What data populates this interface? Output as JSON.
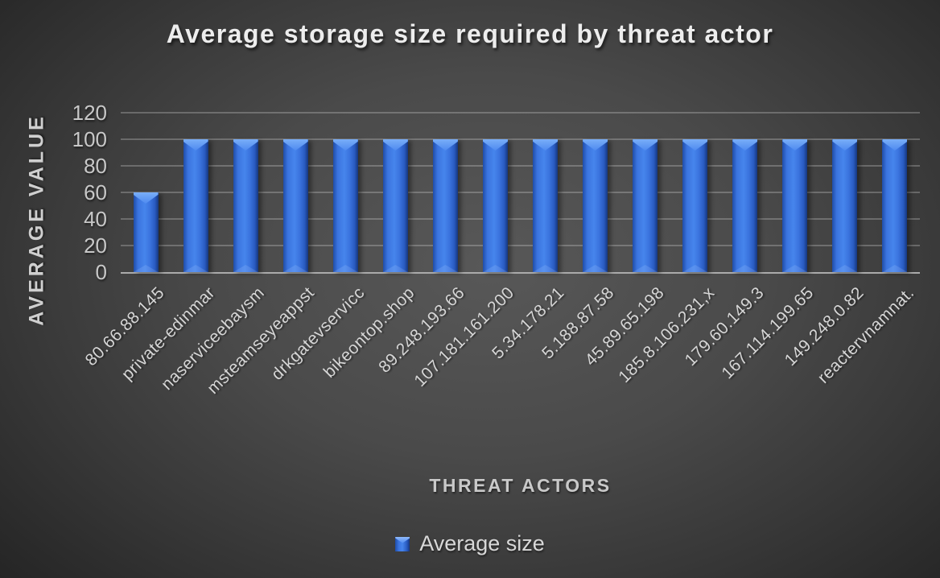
{
  "chart_data": {
    "type": "bar",
    "title": "Average storage size required by threat actor",
    "xlabel": "THREAT ACTORS",
    "ylabel": "AVERAGE VALUE",
    "legend_position": "bottom",
    "grid": true,
    "ylim": [
      0,
      120
    ],
    "yticks": [
      0,
      20,
      40,
      60,
      80,
      100,
      120
    ],
    "categories": [
      "80.66.88.145",
      "private-edinmar",
      "naserviceebaysm",
      "msteamseyeappst",
      "drkgatevservicc",
      "bikeontop.shop",
      "89.248.193.66",
      "107.181.161.200",
      "5.34.178.21",
      "5.188.87.58",
      "45.89.65.198",
      "185.8.106.231,x",
      "179.60.149.3",
      "167.114.199.65",
      "149.248.0.82",
      "reactervnamnat."
    ],
    "series": [
      {
        "name": "Average size",
        "color": "#3b74df",
        "values": [
          60,
          100,
          100,
          100,
          100,
          100,
          100,
          100,
          100,
          100,
          100,
          100,
          100,
          100,
          100,
          100
        ]
      }
    ]
  }
}
